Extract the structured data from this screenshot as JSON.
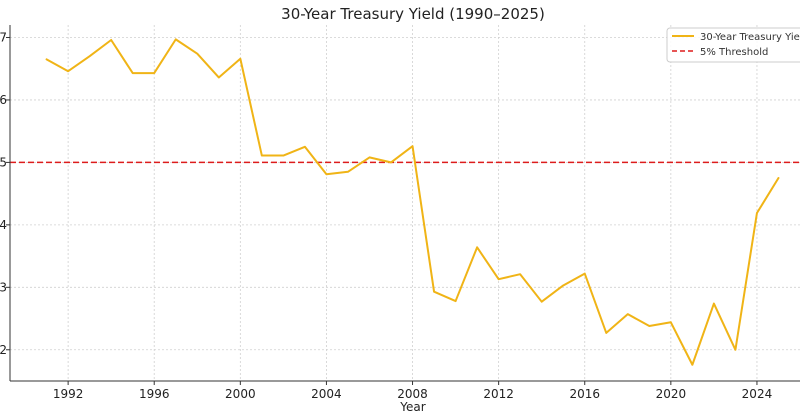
{
  "chart_data": {
    "type": "line",
    "title": "30-Year Treasury Yield (1990–2025)",
    "xlabel": "Year",
    "ylabel": "",
    "xlim": [
      1989.3,
      2026.0
    ],
    "ylim": [
      1.5,
      7.2
    ],
    "x_ticks": [
      1992,
      1996,
      2000,
      2004,
      2008,
      2012,
      2016,
      2020,
      2024
    ],
    "y_ticks": [
      2,
      3,
      4,
      5,
      6,
      7
    ],
    "grid": true,
    "legend_position": "top-right",
    "series": [
      {
        "name": "30-Year Treasury Yield",
        "color": "#f0b416",
        "x": [
          1991,
          1992,
          1993,
          1994,
          1995,
          1996,
          1997,
          1998,
          1999,
          2000,
          2001,
          2002,
          2003,
          2004,
          2005,
          2006,
          2007,
          2008,
          2009,
          2010,
          2011,
          2012,
          2013,
          2014,
          2015,
          2016,
          2017,
          2018,
          2019,
          2020,
          2021,
          2022,
          2023,
          2024,
          2025
        ],
        "values": [
          6.65,
          6.46,
          6.7,
          6.96,
          6.43,
          6.43,
          6.97,
          6.74,
          6.36,
          6.66,
          5.11,
          5.11,
          5.25,
          4.81,
          4.85,
          5.08,
          5.0,
          5.26,
          2.93,
          2.78,
          3.64,
          3.13,
          3.21,
          2.77,
          3.03,
          3.22,
          2.27,
          2.57,
          2.38,
          2.44,
          1.76,
          2.74,
          2.0,
          4.19,
          4.75
        ]
      },
      {
        "name": "5% Threshold",
        "color": "#dd1c1c",
        "style": "dashed",
        "y": 5
      }
    ]
  }
}
